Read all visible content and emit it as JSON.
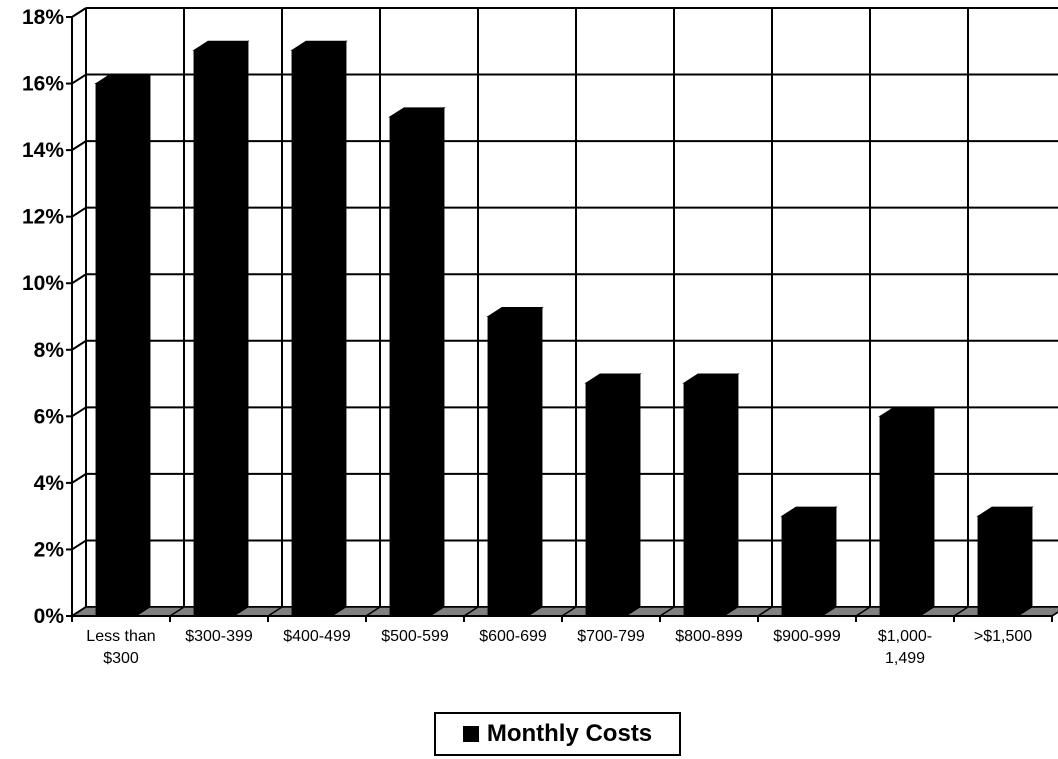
{
  "chart_data": {
    "type": "bar",
    "categories": [
      "Less than $300",
      "$300-399",
      "$400-499",
      "$500-599",
      "$600-699",
      "$700-799",
      "$800-899",
      "$900-999",
      "$1,000-1,499",
      ">$1,500"
    ],
    "category_label_lines": [
      [
        "Less than",
        "$300"
      ],
      [
        "$300-399"
      ],
      [
        "$400-499"
      ],
      [
        "$500-599"
      ],
      [
        "$600-699"
      ],
      [
        "$700-799"
      ],
      [
        "$800-899"
      ],
      [
        "$900-999"
      ],
      [
        "$1,000-",
        "1,499"
      ],
      [
        ">$1,500"
      ]
    ],
    "series": [
      {
        "name": "Monthly Costs",
        "values": [
          16,
          17,
          17,
          15,
          9,
          7,
          7,
          3,
          6,
          3
        ]
      }
    ],
    "ylim": [
      0,
      18
    ],
    "y_ticks": [
      "0%",
      "2%",
      "4%",
      "6%",
      "8%",
      "10%",
      "12%",
      "14%",
      "16%",
      "18%"
    ],
    "grid": true,
    "legend_position": "bottom-center",
    "bar_color": "#000000",
    "floor_color": "#808080",
    "title": "",
    "xlabel": "",
    "ylabel": ""
  },
  "legend": {
    "label": "Monthly Costs"
  }
}
